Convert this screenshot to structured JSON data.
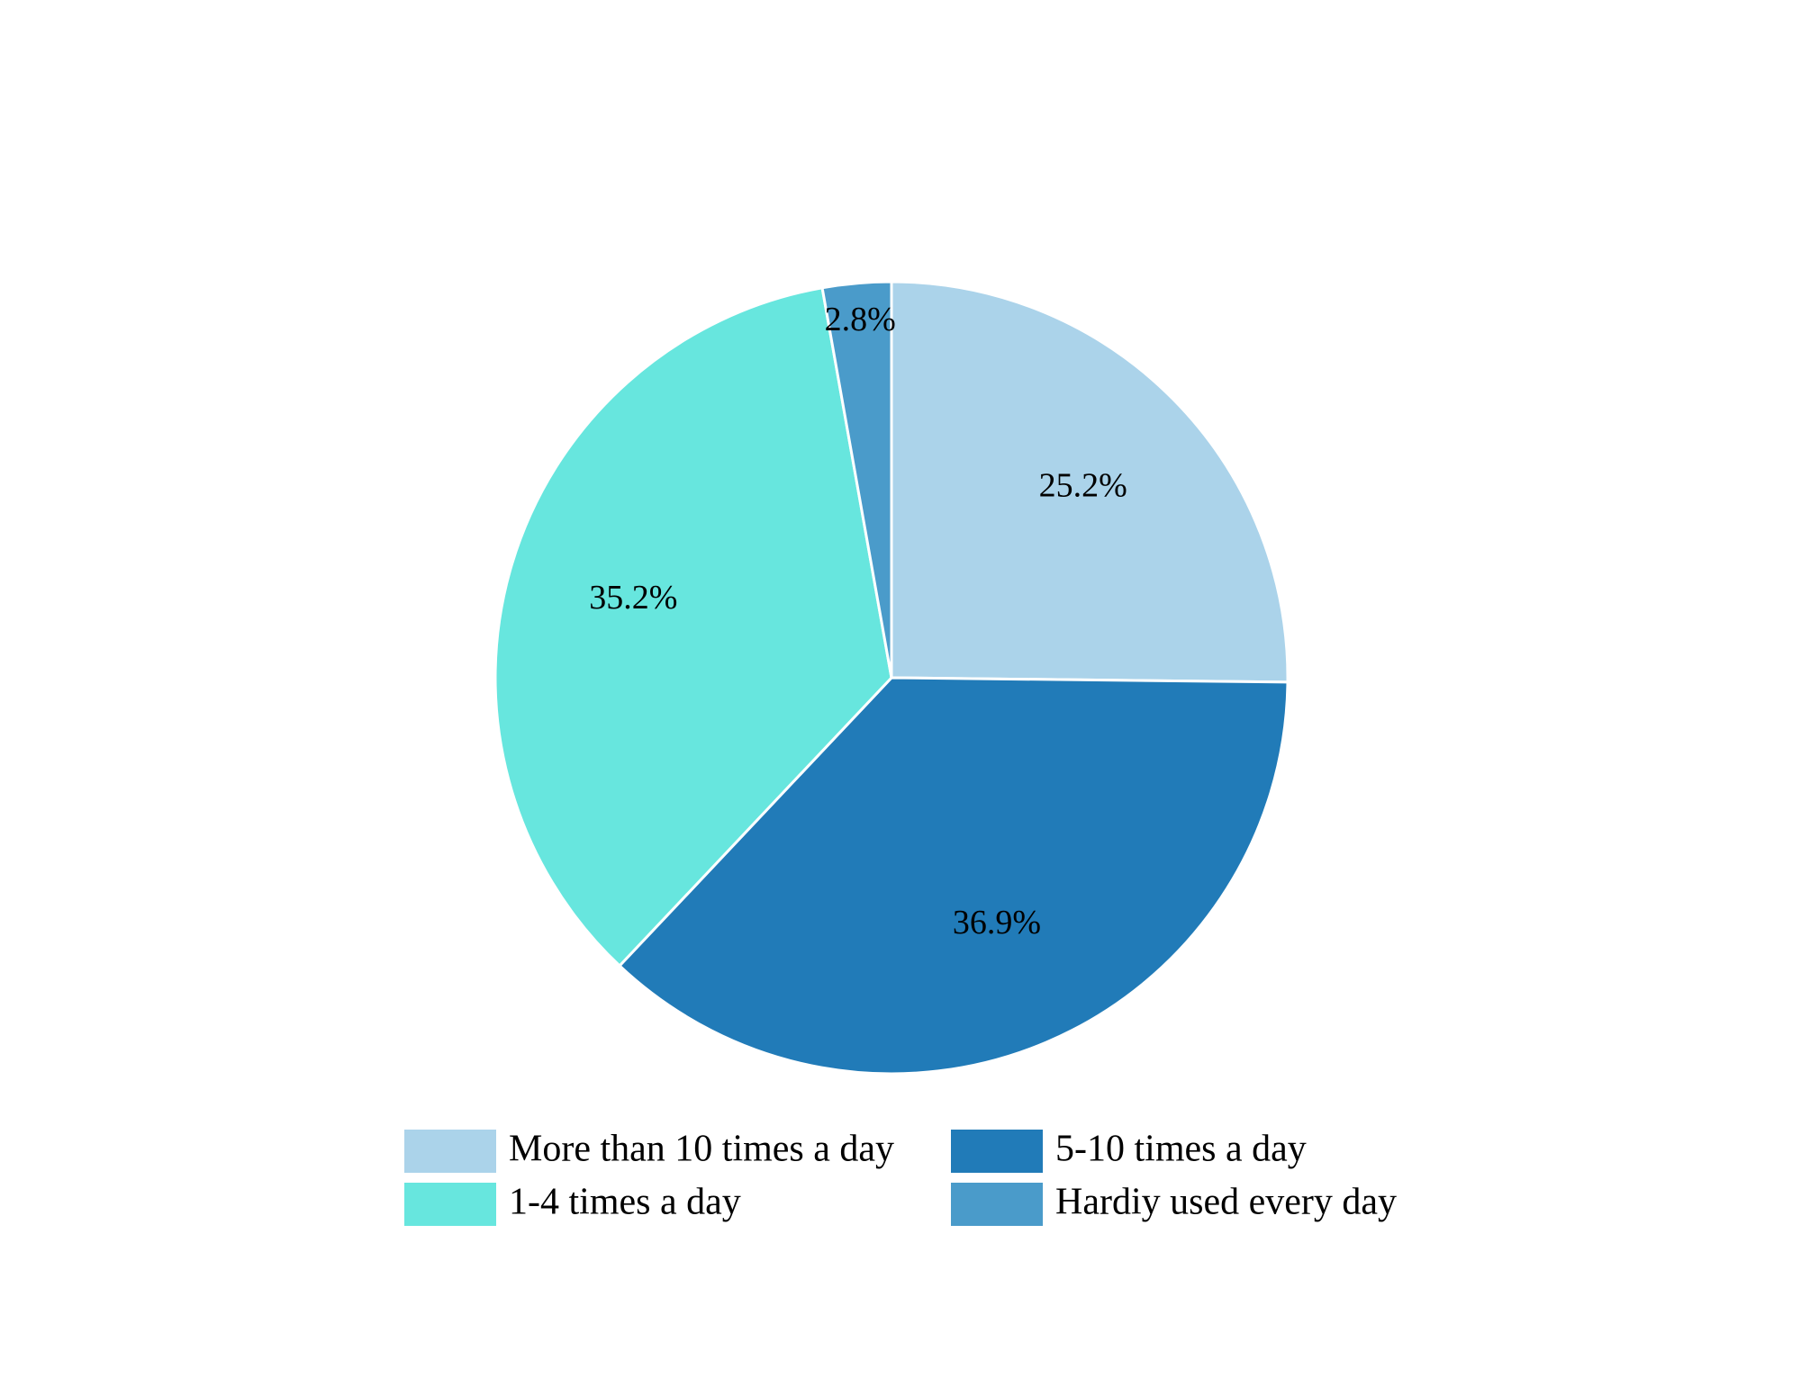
{
  "chart_data": {
    "type": "pie",
    "categories": [
      "More than 10 times a day",
      "5-10 times a day",
      "1-4 times a day",
      "Hardiy used every day"
    ],
    "values": [
      25.2,
      36.9,
      35.2,
      2.8
    ],
    "value_labels": [
      "25.2%",
      "36.9%",
      "35.2%",
      "2.8%"
    ],
    "colors": [
      "#abd3ea",
      "#217bb8",
      "#67e6de",
      "#4a9bca"
    ]
  }
}
